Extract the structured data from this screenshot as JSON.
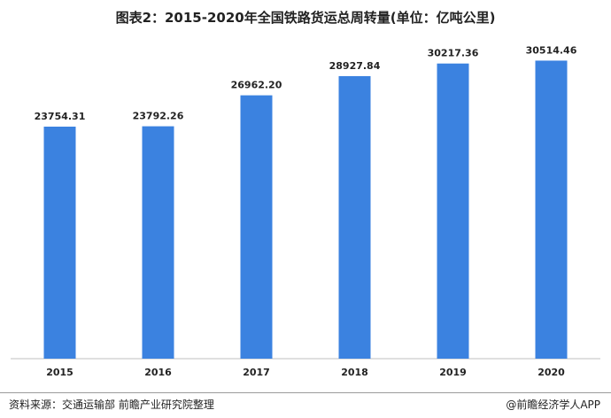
{
  "title": "图表2：2015-2020年全国铁路货运总周转量(单位：亿吨公里)",
  "chart_data": {
    "type": "bar",
    "title": "图表2：2015-2020年全国铁路货运总周转量(单位：亿吨公里)",
    "categories": [
      "2015",
      "2016",
      "2017",
      "2018",
      "2019",
      "2020"
    ],
    "values": [
      23754.31,
      23792.26,
      26962.2,
      28927.84,
      30217.36,
      30514.46
    ],
    "value_labels": [
      "23754.31",
      "23792.26",
      "26962.20",
      "28927.84",
      "30217.36",
      "30514.46"
    ],
    "xlabel": "",
    "ylabel": "",
    "ylim": [
      0,
      34000
    ],
    "grid": false,
    "legend": "none",
    "bar_color": "#3b82e0"
  },
  "footer": {
    "source": "资料来源：交通运输部 前瞻产业研究院整理",
    "brand": "@前瞻经济学人APP"
  }
}
